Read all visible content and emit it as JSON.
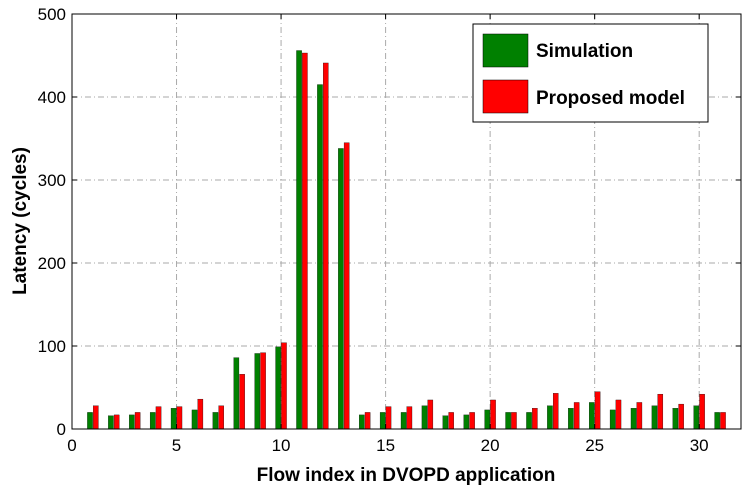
{
  "chart_data": {
    "type": "bar",
    "xlabel": "Flow index in DVOPD application",
    "ylabel": "Latency (cycles)",
    "xlim": [
      0,
      32
    ],
    "ylim": [
      0,
      500
    ],
    "xticks": [
      0,
      5,
      10,
      15,
      20,
      25,
      30
    ],
    "yticks": [
      0,
      100,
      200,
      300,
      400,
      500
    ],
    "grid": true,
    "legend_position": "top-right",
    "x": [
      1,
      2,
      3,
      4,
      5,
      6,
      7,
      8,
      9,
      10,
      11,
      12,
      13,
      14,
      15,
      16,
      17,
      18,
      19,
      20,
      21,
      22,
      23,
      24,
      25,
      26,
      27,
      28,
      29,
      30,
      31
    ],
    "series": [
      {
        "name": "Simulation",
        "color": "#008000",
        "values": [
          20,
          16,
          17,
          20,
          25,
          23,
          20,
          86,
          91,
          99,
          456,
          415,
          338,
          17,
          20,
          20,
          28,
          16,
          17,
          23,
          20,
          20,
          28,
          25,
          32,
          23,
          25,
          28,
          25,
          28,
          20
        ]
      },
      {
        "name": "Proposed model",
        "color": "#ff0000",
        "values": [
          28,
          17,
          20,
          27,
          27,
          36,
          28,
          66,
          92,
          104,
          453,
          441,
          345,
          20,
          27,
          27,
          35,
          20,
          20,
          35,
          20,
          25,
          43,
          32,
          45,
          35,
          32,
          42,
          30,
          42,
          20
        ]
      }
    ]
  }
}
